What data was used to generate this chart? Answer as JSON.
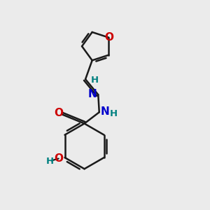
{
  "bg_color": "#ebebeb",
  "bond_color": "#1a1a1a",
  "o_color": "#cc0000",
  "n_color": "#0000cc",
  "h_color": "#008080",
  "line_width": 1.8,
  "font_size_atoms": 11,
  "font_size_h": 9.5,
  "xlim": [
    0,
    10
  ],
  "ylim": [
    0,
    10
  ]
}
